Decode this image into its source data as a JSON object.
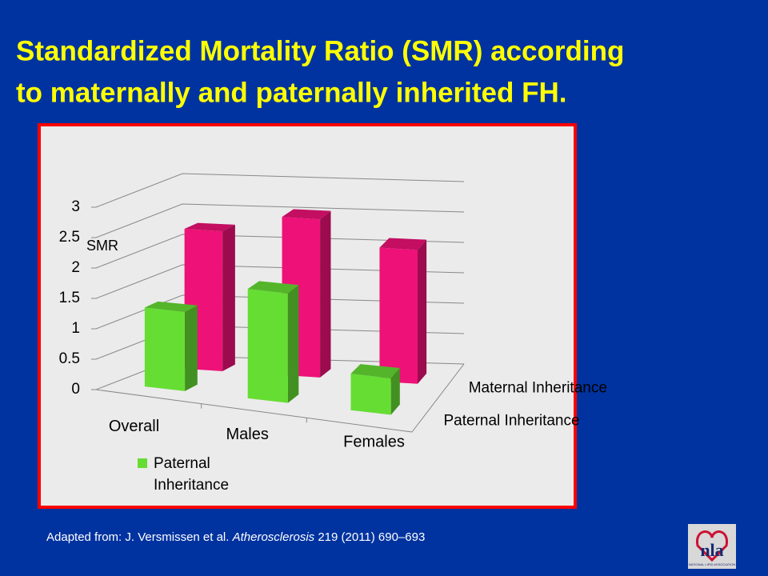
{
  "chart_data": {
    "type": "bar3d",
    "title": "Standardized Mortality Ratio (SMR) according",
    "title_line2": "to maternally and paternally inherited FH.",
    "ylabel": "SMR",
    "categories": [
      "Overall",
      "Males",
      "Females"
    ],
    "series": [
      {
        "name": "Paternal Inheritance",
        "color": "#66dd33",
        "values": [
          1.3,
          1.8,
          0.6
        ]
      },
      {
        "name": "Maternal Inheritance",
        "color": "#ee1177",
        "values": [
          2.3,
          2.6,
          2.2
        ]
      }
    ],
    "ylim": [
      0,
      3
    ],
    "yticks": [
      0,
      0.5,
      1,
      1.5,
      2,
      2.5,
      3
    ],
    "grid": true
  },
  "citation": {
    "prefix": "Adapted from: J. Versmissen et al. ",
    "journal": "Atherosclerosis",
    "suffix": " 219 (2011) 690–693"
  },
  "logo": {
    "text": "nla",
    "caption": "NATIONAL LIPID ASSOCIATION"
  }
}
